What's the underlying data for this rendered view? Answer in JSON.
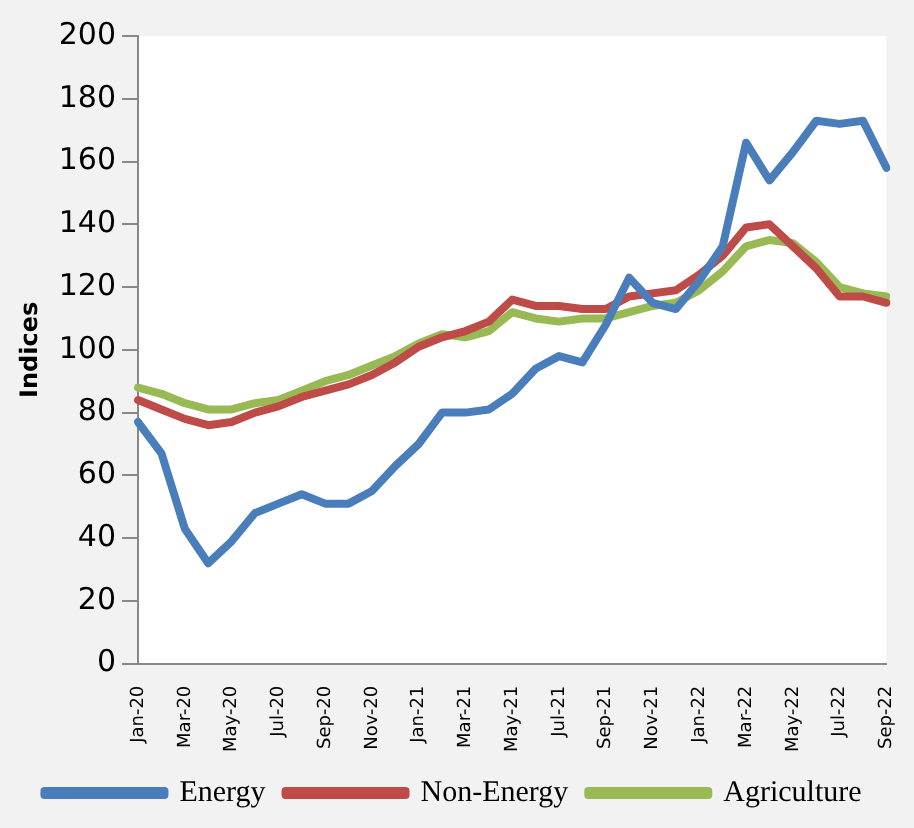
{
  "chart_data": {
    "type": "line",
    "ylabel": "Indices",
    "categories": [
      "Jan-20",
      null,
      "Mar-20",
      null,
      "May-20",
      null,
      "Jul-20",
      null,
      "Sep-20",
      null,
      "Nov-20",
      null,
      "Jan-21",
      null,
      "Mar-21",
      null,
      "May-21",
      null,
      "Jul-21",
      null,
      "Sep-21",
      null,
      "Nov-21",
      null,
      "Jan-22",
      null,
      "Mar-22",
      null,
      "May-22",
      null,
      "Jul-22",
      null,
      "Sep-22"
    ],
    "series": [
      {
        "name": "Energy",
        "color": "#4a7ebb",
        "values": [
          77,
          67,
          43,
          32,
          39,
          48,
          51,
          54,
          51,
          51,
          55,
          63,
          70,
          80,
          80,
          81,
          86,
          94,
          98,
          96,
          108,
          123,
          115,
          113,
          122,
          133,
          166,
          154,
          163,
          173,
          172,
          173,
          158
        ]
      },
      {
        "name": "Non-Energy",
        "color": "#be4b48",
        "values": [
          84,
          81,
          78,
          76,
          77,
          80,
          82,
          85,
          87,
          89,
          92,
          96,
          101,
          104,
          106,
          109,
          116,
          114,
          114,
          113,
          113,
          117,
          118,
          119,
          124,
          130,
          139,
          140,
          133,
          126,
          117,
          117,
          115
        ]
      },
      {
        "name": "Agriculture",
        "color": "#98b954",
        "values": [
          88,
          86,
          83,
          81,
          81,
          83,
          84,
          87,
          90,
          92,
          95,
          98,
          102,
          105,
          104,
          106,
          112,
          110,
          109,
          110,
          110,
          112,
          114,
          115,
          119,
          125,
          133,
          135,
          134,
          128,
          120,
          118,
          117
        ]
      }
    ],
    "ylim": [
      0,
      200
    ],
    "yticks": [
      0,
      20,
      40,
      60,
      80,
      100,
      120,
      140,
      160,
      180,
      200
    ],
    "grid": false,
    "legend": "bottom",
    "marker": "none",
    "line_style": "solid"
  }
}
